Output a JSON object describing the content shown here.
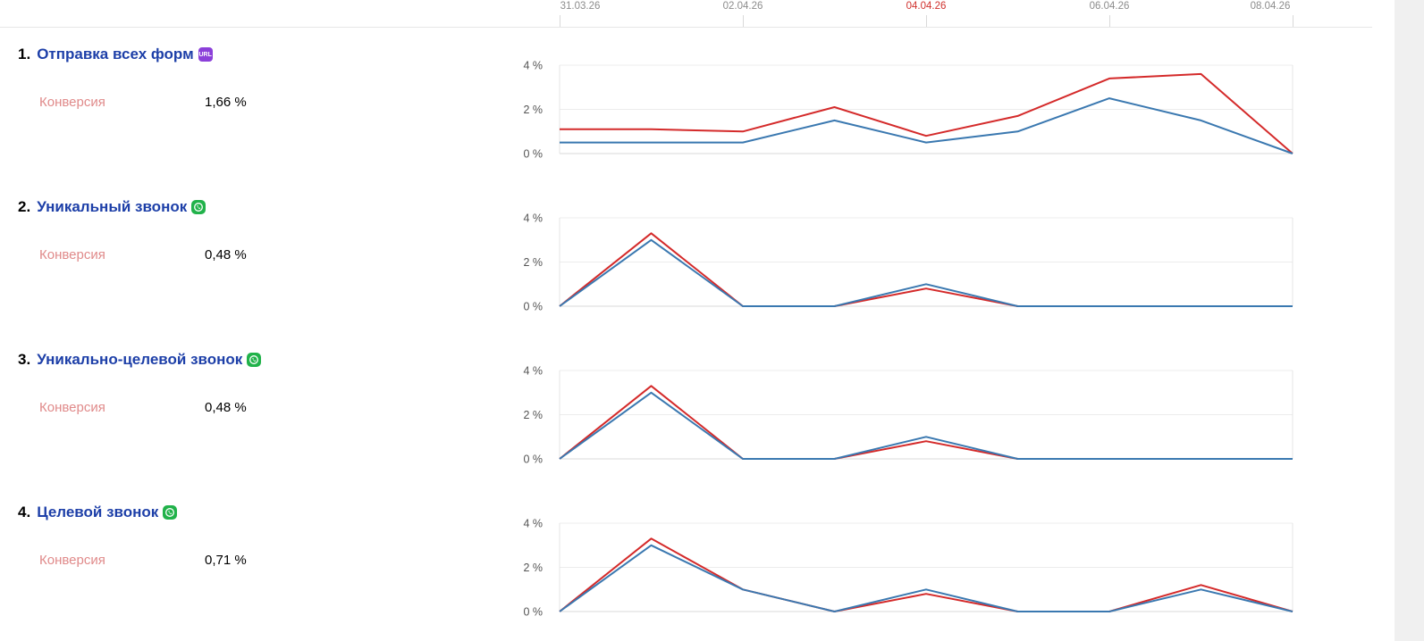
{
  "dates": [
    {
      "label": "31.03.26",
      "weekend": false
    },
    {
      "label": "02.04.26",
      "weekend": false
    },
    {
      "label": "04.04.26",
      "weekend": true
    },
    {
      "label": "06.04.26",
      "weekend": false
    },
    {
      "label": "08.04.26",
      "weekend": false
    }
  ],
  "colors": {
    "series_red": "#d42a2a",
    "series_blue": "#3a78b0",
    "goal_link": "#1d3fa8",
    "conversion_label": "#e08a8a",
    "weekend_date": "#d0312d"
  },
  "goals": [
    {
      "number": "1.",
      "name": "Отправка всех форм",
      "icon": "url-icon",
      "icon_text": "URL",
      "conversion_label": "Конверсия",
      "conversion_value": "1,66 %",
      "chart_data": {
        "type": "line",
        "x": [
          "31.03.26",
          "01.04.26",
          "02.04.26",
          "03.04.26",
          "04.04.26",
          "05.04.26",
          "06.04.26",
          "07.04.26",
          "08.04.26"
        ],
        "y_ticks": [
          "4 %",
          "2 %",
          "0 %"
        ],
        "ylim": [
          0,
          4
        ],
        "grid": true,
        "series": [
          {
            "color": "#d42a2a",
            "values": [
              1.1,
              1.1,
              1.0,
              2.1,
              0.8,
              1.7,
              3.4,
              3.6,
              0.0
            ]
          },
          {
            "color": "#3a78b0",
            "values": [
              0.5,
              0.5,
              0.5,
              1.5,
              0.5,
              1.0,
              2.5,
              1.5,
              0.0
            ]
          }
        ]
      }
    },
    {
      "number": "2.",
      "name": "Уникальный звонок",
      "icon": "phone-icon",
      "icon_text": "",
      "conversion_label": "Конверсия",
      "conversion_value": "0,48 %",
      "chart_data": {
        "type": "line",
        "x": [
          "31.03.26",
          "01.04.26",
          "02.04.26",
          "03.04.26",
          "04.04.26",
          "05.04.26",
          "06.04.26",
          "07.04.26",
          "08.04.26"
        ],
        "y_ticks": [
          "4 %",
          "2 %",
          "0 %"
        ],
        "ylim": [
          0,
          4
        ],
        "grid": true,
        "series": [
          {
            "color": "#d42a2a",
            "values": [
              0.0,
              3.3,
              0.0,
              0.0,
              0.8,
              0.0,
              0.0,
              0.0,
              0.0
            ]
          },
          {
            "color": "#3a78b0",
            "values": [
              0.0,
              3.0,
              0.0,
              0.0,
              1.0,
              0.0,
              0.0,
              0.0,
              0.0
            ]
          }
        ]
      }
    },
    {
      "number": "3.",
      "name": "Уникально-целевой звонок",
      "icon": "phone-icon",
      "icon_text": "",
      "conversion_label": "Конверсия",
      "conversion_value": "0,48 %",
      "chart_data": {
        "type": "line",
        "x": [
          "31.03.26",
          "01.04.26",
          "02.04.26",
          "03.04.26",
          "04.04.26",
          "05.04.26",
          "06.04.26",
          "07.04.26",
          "08.04.26"
        ],
        "y_ticks": [
          "4 %",
          "2 %",
          "0 %"
        ],
        "ylim": [
          0,
          4
        ],
        "grid": true,
        "series": [
          {
            "color": "#d42a2a",
            "values": [
              0.0,
              3.3,
              0.0,
              0.0,
              0.8,
              0.0,
              0.0,
              0.0,
              0.0
            ]
          },
          {
            "color": "#3a78b0",
            "values": [
              0.0,
              3.0,
              0.0,
              0.0,
              1.0,
              0.0,
              0.0,
              0.0,
              0.0
            ]
          }
        ]
      }
    },
    {
      "number": "4.",
      "name": "Целевой звонок",
      "icon": "phone-icon",
      "icon_text": "",
      "conversion_label": "Конверсия",
      "conversion_value": "0,71 %",
      "chart_data": {
        "type": "line",
        "x": [
          "31.03.26",
          "01.04.26",
          "02.04.26",
          "03.04.26",
          "04.04.26",
          "05.04.26",
          "06.04.26",
          "07.04.26",
          "08.04.26"
        ],
        "y_ticks": [
          "4 %",
          "2 %",
          "0 %"
        ],
        "ylim": [
          0,
          4
        ],
        "grid": true,
        "series": [
          {
            "color": "#d42a2a",
            "values": [
              0.0,
              3.3,
              1.0,
              0.0,
              0.8,
              0.0,
              0.0,
              1.2,
              0.0
            ]
          },
          {
            "color": "#3a78b0",
            "values": [
              0.0,
              3.0,
              1.0,
              0.0,
              1.0,
              0.0,
              0.0,
              1.0,
              0.0
            ]
          }
        ]
      }
    }
  ]
}
